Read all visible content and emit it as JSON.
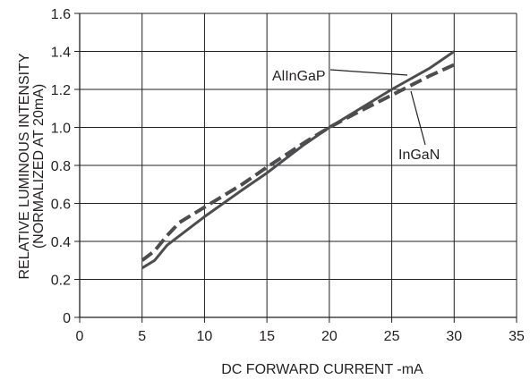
{
  "chart_data": {
    "type": "line",
    "xlabel": "DC FORWARD CURRENT -mA",
    "ylabel_line1": "RELATIVE LUMINOUS INTENSITY",
    "ylabel_line2": "(NORMALIZED AT 20mA)",
    "xlim": [
      0,
      35
    ],
    "ylim": [
      0,
      1.6
    ],
    "x_ticks": [
      "0",
      "5",
      "10",
      "15",
      "20",
      "25",
      "30",
      "35"
    ],
    "y_ticks": [
      "0",
      "0.2",
      "0.4",
      "0.6",
      "0.8",
      "1.0",
      "1.2",
      "1.4",
      "1.6"
    ],
    "grid": true,
    "legend": "none",
    "series": [
      {
        "name": "AlInGaP",
        "style": "solid",
        "color": "#4d4d4f",
        "x": [
          5,
          6,
          7,
          10,
          13,
          15,
          18,
          20,
          22,
          25,
          28,
          30
        ],
        "y": [
          0.26,
          0.3,
          0.38,
          0.53,
          0.67,
          0.76,
          0.91,
          1.0,
          1.08,
          1.2,
          1.31,
          1.4
        ]
      },
      {
        "name": "InGaN",
        "style": "dashed",
        "color": "#4d4d4f",
        "x": [
          5,
          6,
          7,
          8,
          10,
          13,
          15,
          18,
          20,
          22,
          25,
          28,
          30
        ],
        "y": [
          0.3,
          0.35,
          0.43,
          0.5,
          0.58,
          0.7,
          0.79,
          0.92,
          1.0,
          1.07,
          1.17,
          1.27,
          1.33
        ]
      }
    ],
    "annotations": [
      {
        "text": "AlInGaP",
        "series": "AlInGaP"
      },
      {
        "text": "InGaN",
        "series": "InGaN"
      }
    ]
  }
}
